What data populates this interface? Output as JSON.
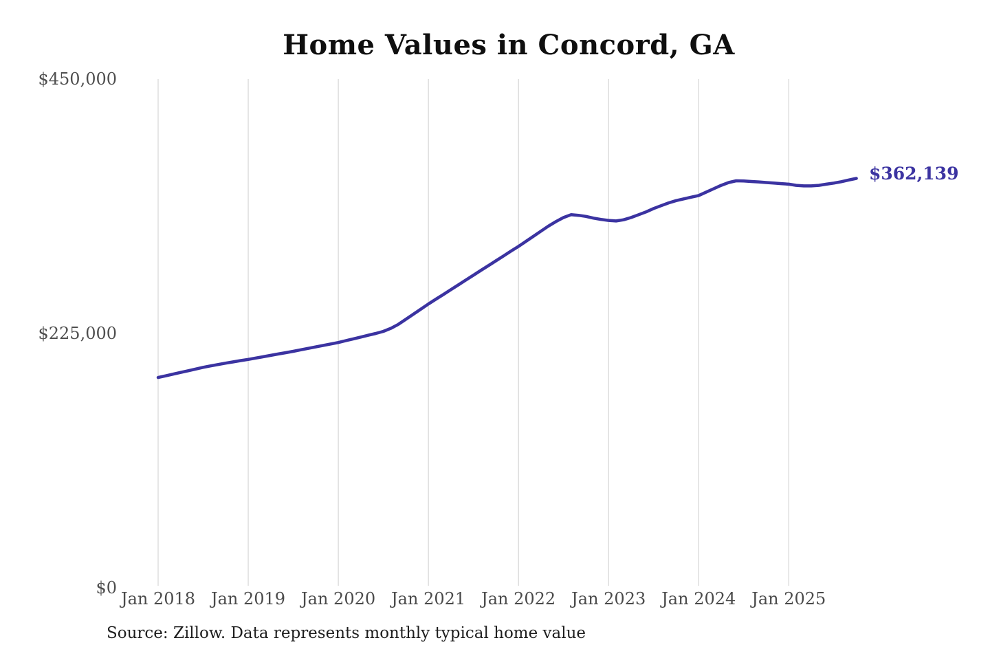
{
  "colors": {
    "line": "#3b33a1",
    "end_label": "#3b33a1",
    "gridline": "#cccccc",
    "background": "#ffffff"
  },
  "chart_data": {
    "type": "line",
    "title": "Home Values in Concord, GA",
    "source_note": "Source: Zillow. Data represents monthly typical home value",
    "end_label": "$362,139",
    "end_value": 362139,
    "xlabel": "",
    "ylabel": "",
    "ylim": [
      0,
      450000
    ],
    "grid": "vertical-only",
    "legend": "none",
    "y_ticks": [
      {
        "value": 450000,
        "label": "$450,000"
      },
      {
        "value": 225000,
        "label": "$225,000"
      },
      {
        "value": 0,
        "label": "$0"
      }
    ],
    "x_ticks": [
      "Jan 2018",
      "Jan 2019",
      "Jan 2020",
      "Jan 2021",
      "Jan 2022",
      "Jan 2023",
      "Jan 2024",
      "Jan 2025"
    ],
    "series": [
      {
        "name": "Monthly typical home value",
        "months": [
          "2018-01",
          "2018-02",
          "2018-03",
          "2018-04",
          "2018-05",
          "2018-06",
          "2018-07",
          "2018-08",
          "2018-09",
          "2018-10",
          "2018-11",
          "2018-12",
          "2019-01",
          "2019-02",
          "2019-03",
          "2019-04",
          "2019-05",
          "2019-06",
          "2019-07",
          "2019-08",
          "2019-09",
          "2019-10",
          "2019-11",
          "2019-12",
          "2020-01",
          "2020-02",
          "2020-03",
          "2020-04",
          "2020-05",
          "2020-06",
          "2020-07",
          "2020-08",
          "2020-09",
          "2020-10",
          "2020-11",
          "2020-12",
          "2021-01",
          "2021-02",
          "2021-03",
          "2021-04",
          "2021-05",
          "2021-06",
          "2021-07",
          "2021-08",
          "2021-09",
          "2021-10",
          "2021-11",
          "2021-12",
          "2022-01",
          "2022-02",
          "2022-03",
          "2022-04",
          "2022-05",
          "2022-06",
          "2022-07",
          "2022-08",
          "2022-09",
          "2022-10",
          "2022-11",
          "2022-12",
          "2023-01",
          "2023-02",
          "2023-03",
          "2023-04",
          "2023-05",
          "2023-06",
          "2023-07",
          "2023-08",
          "2023-09",
          "2023-10",
          "2023-11",
          "2023-12",
          "2024-01",
          "2024-02",
          "2024-03",
          "2024-04",
          "2024-05",
          "2024-06",
          "2024-07",
          "2024-08",
          "2024-09",
          "2024-10",
          "2024-11",
          "2024-12",
          "2025-01",
          "2025-02",
          "2025-03",
          "2025-04",
          "2025-05",
          "2025-06",
          "2025-07",
          "2025-08",
          "2025-09",
          "2025-10"
        ],
        "values": [
          186000,
          187500,
          189000,
          190500,
          192000,
          193500,
          195000,
          196300,
          197500,
          198700,
          199800,
          201000,
          202000,
          203200,
          204400,
          205600,
          206800,
          208000,
          209200,
          210500,
          211800,
          213100,
          214400,
          215700,
          217000,
          218600,
          220200,
          221800,
          223400,
          225000,
          226800,
          229500,
          233000,
          237500,
          242000,
          246500,
          251000,
          255300,
          259500,
          263800,
          268000,
          272300,
          276500,
          280800,
          285000,
          289300,
          293500,
          297800,
          302000,
          306500,
          311000,
          315500,
          320000,
          324000,
          327500,
          330000,
          329500,
          328500,
          327000,
          325800,
          325000,
          324500,
          325500,
          327500,
          330000,
          332500,
          335500,
          338000,
          340500,
          342500,
          344000,
          345500,
          347000,
          350000,
          353000,
          356000,
          358500,
          360000,
          359800,
          359400,
          359000,
          358500,
          358000,
          357500,
          357000,
          356000,
          355500,
          355500,
          356000,
          357000,
          358000,
          359200,
          360700,
          362139
        ]
      }
    ]
  }
}
